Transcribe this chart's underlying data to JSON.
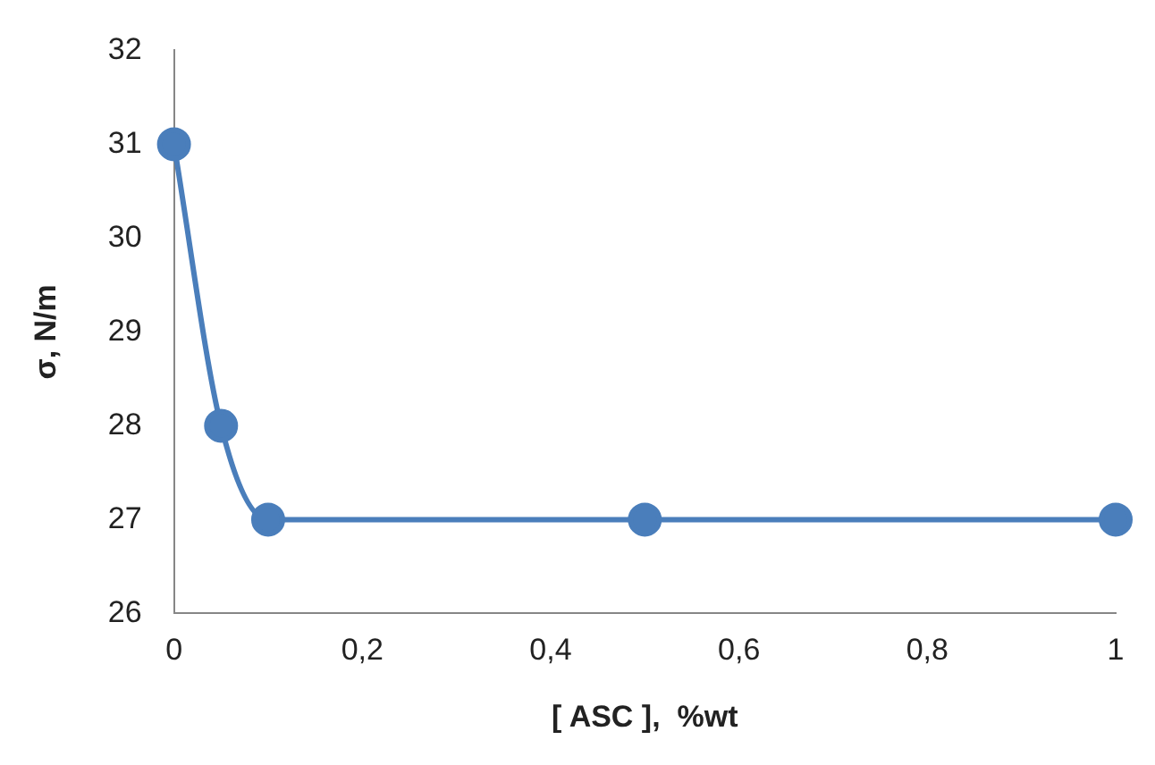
{
  "chart_data": {
    "type": "line",
    "xlabel": "[ ASC ],  %wt",
    "ylabel": "σ, N/m",
    "x": [
      0,
      0.05,
      0.1,
      0.5,
      1
    ],
    "series": [
      {
        "color": "#4a7ebb",
        "values": [
          31,
          28,
          27,
          27,
          27
        ]
      }
    ],
    "xlim": [
      0,
      1
    ],
    "xticks": [
      0,
      {
        "value": 0.2,
        "label": "0,2"
      },
      {
        "value": 0.4,
        "label": "0,4"
      },
      {
        "value": 0.6,
        "label": "0,6"
      },
      {
        "value": 0.8,
        "label": "0,8"
      },
      1
    ],
    "ylim": [
      26,
      32
    ],
    "yticks": [
      26,
      27,
      28,
      29,
      30,
      31,
      32
    ],
    "grid": false,
    "legend": false,
    "marker": "circle",
    "line_style": "solid"
  }
}
